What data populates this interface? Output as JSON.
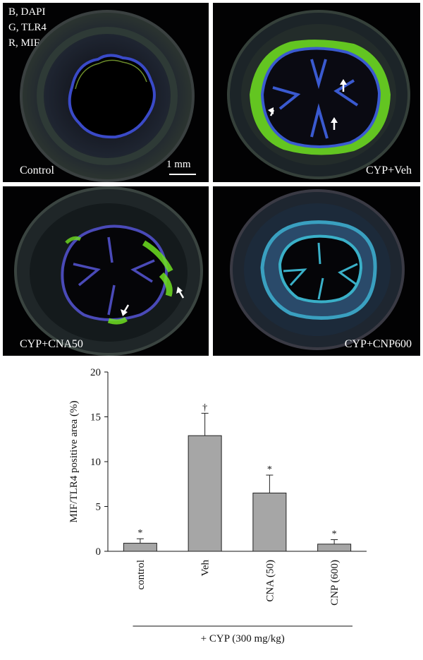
{
  "panels": [
    {
      "label": "Control",
      "channels": [
        "B, DAPI",
        "G, TLR4",
        "R, MIF"
      ],
      "scale_bar": "1 mm"
    },
    {
      "label": "CYP+Veh"
    },
    {
      "label": "CYP+CNA50"
    },
    {
      "label": "CYP+CNP600"
    }
  ],
  "chart_data": {
    "type": "bar",
    "categories": [
      "control",
      "Veh",
      "CNA (50)",
      "CNP (600)"
    ],
    "values": [
      0.9,
      12.9,
      6.5,
      0.8
    ],
    "errors": [
      0.5,
      2.5,
      2.0,
      0.5
    ],
    "markers": [
      "*",
      "†",
      "*",
      "*"
    ],
    "ylabel": "MIF/TLR4 positive area (%)",
    "xlabel": "",
    "ylim": [
      0,
      20
    ],
    "yticks": [
      "0",
      "5",
      "10",
      "15",
      "20"
    ],
    "bar_color": "#a6a6a6",
    "group_label": "+ CYP (300 mg/kg)",
    "grid": false
  }
}
